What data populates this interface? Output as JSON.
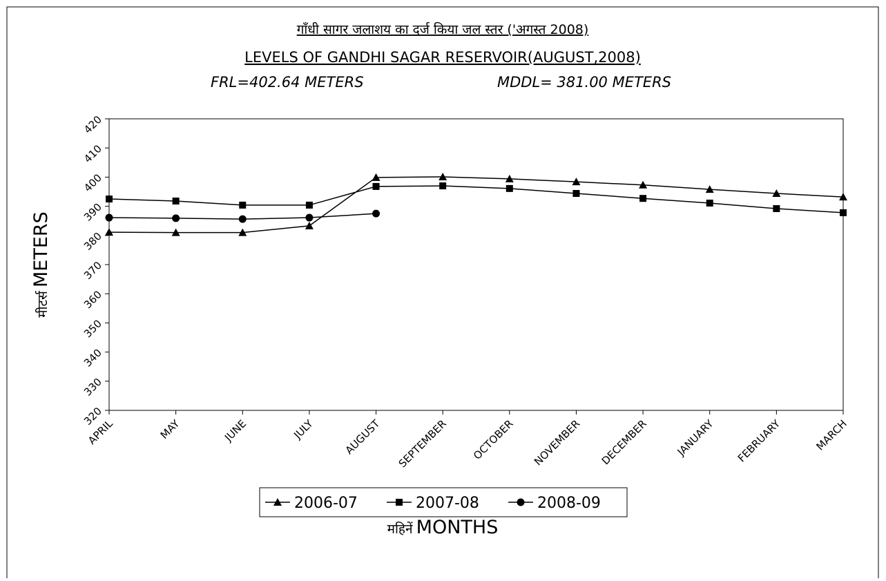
{
  "chart_data": {
    "type": "line",
    "title": "गाँधी सागर जलाशय का दर्ज किया जल स्तर ('अगस्त 2008)",
    "subtitle": "LEVELS OF GANDHI SAGAR RESERVOIR(AUGUST,2008)",
    "annotations": [
      "FRL=402.64 METERS",
      "MDDL= 381.00 METERS"
    ],
    "ylabel": [
      "मीटर्स",
      "METERS"
    ],
    "xlabel": [
      "महिनें",
      "MONTHS"
    ],
    "categories": [
      "APRIL",
      "MAY",
      "JUNE",
      "JULY",
      "AUGUST",
      "SEPTEMBER",
      "OCTOBER",
      "NOVEMBER",
      "DECEMBER",
      "JANUARY",
      "FEBRUARY",
      "MARCH"
    ],
    "ylim": [
      320,
      420
    ],
    "yticks": [
      320,
      330,
      340,
      350,
      360,
      370,
      380,
      390,
      400,
      410,
      420
    ],
    "grid": false,
    "legend": "bottom",
    "series": [
      {
        "name": "2006-07",
        "color": "#000000",
        "marker": "triangle",
        "values": [
          381.1,
          381.0,
          381.0,
          383.3,
          399.9,
          400.1,
          399.4,
          398.4,
          397.3,
          395.8,
          394.4,
          393.2
        ]
      },
      {
        "name": "2007-08",
        "color": "#000000",
        "marker": "square",
        "values": [
          392.5,
          391.8,
          390.4,
          390.4,
          396.8,
          397.0,
          396.1,
          394.4,
          392.7,
          391.1,
          389.2,
          387.8
        ]
      },
      {
        "name": "2008-09",
        "color": "#000000",
        "marker": "circle",
        "values": [
          386.1,
          385.9,
          385.6,
          386.1,
          387.5,
          null,
          null,
          null,
          null,
          null,
          null,
          null
        ]
      }
    ]
  }
}
